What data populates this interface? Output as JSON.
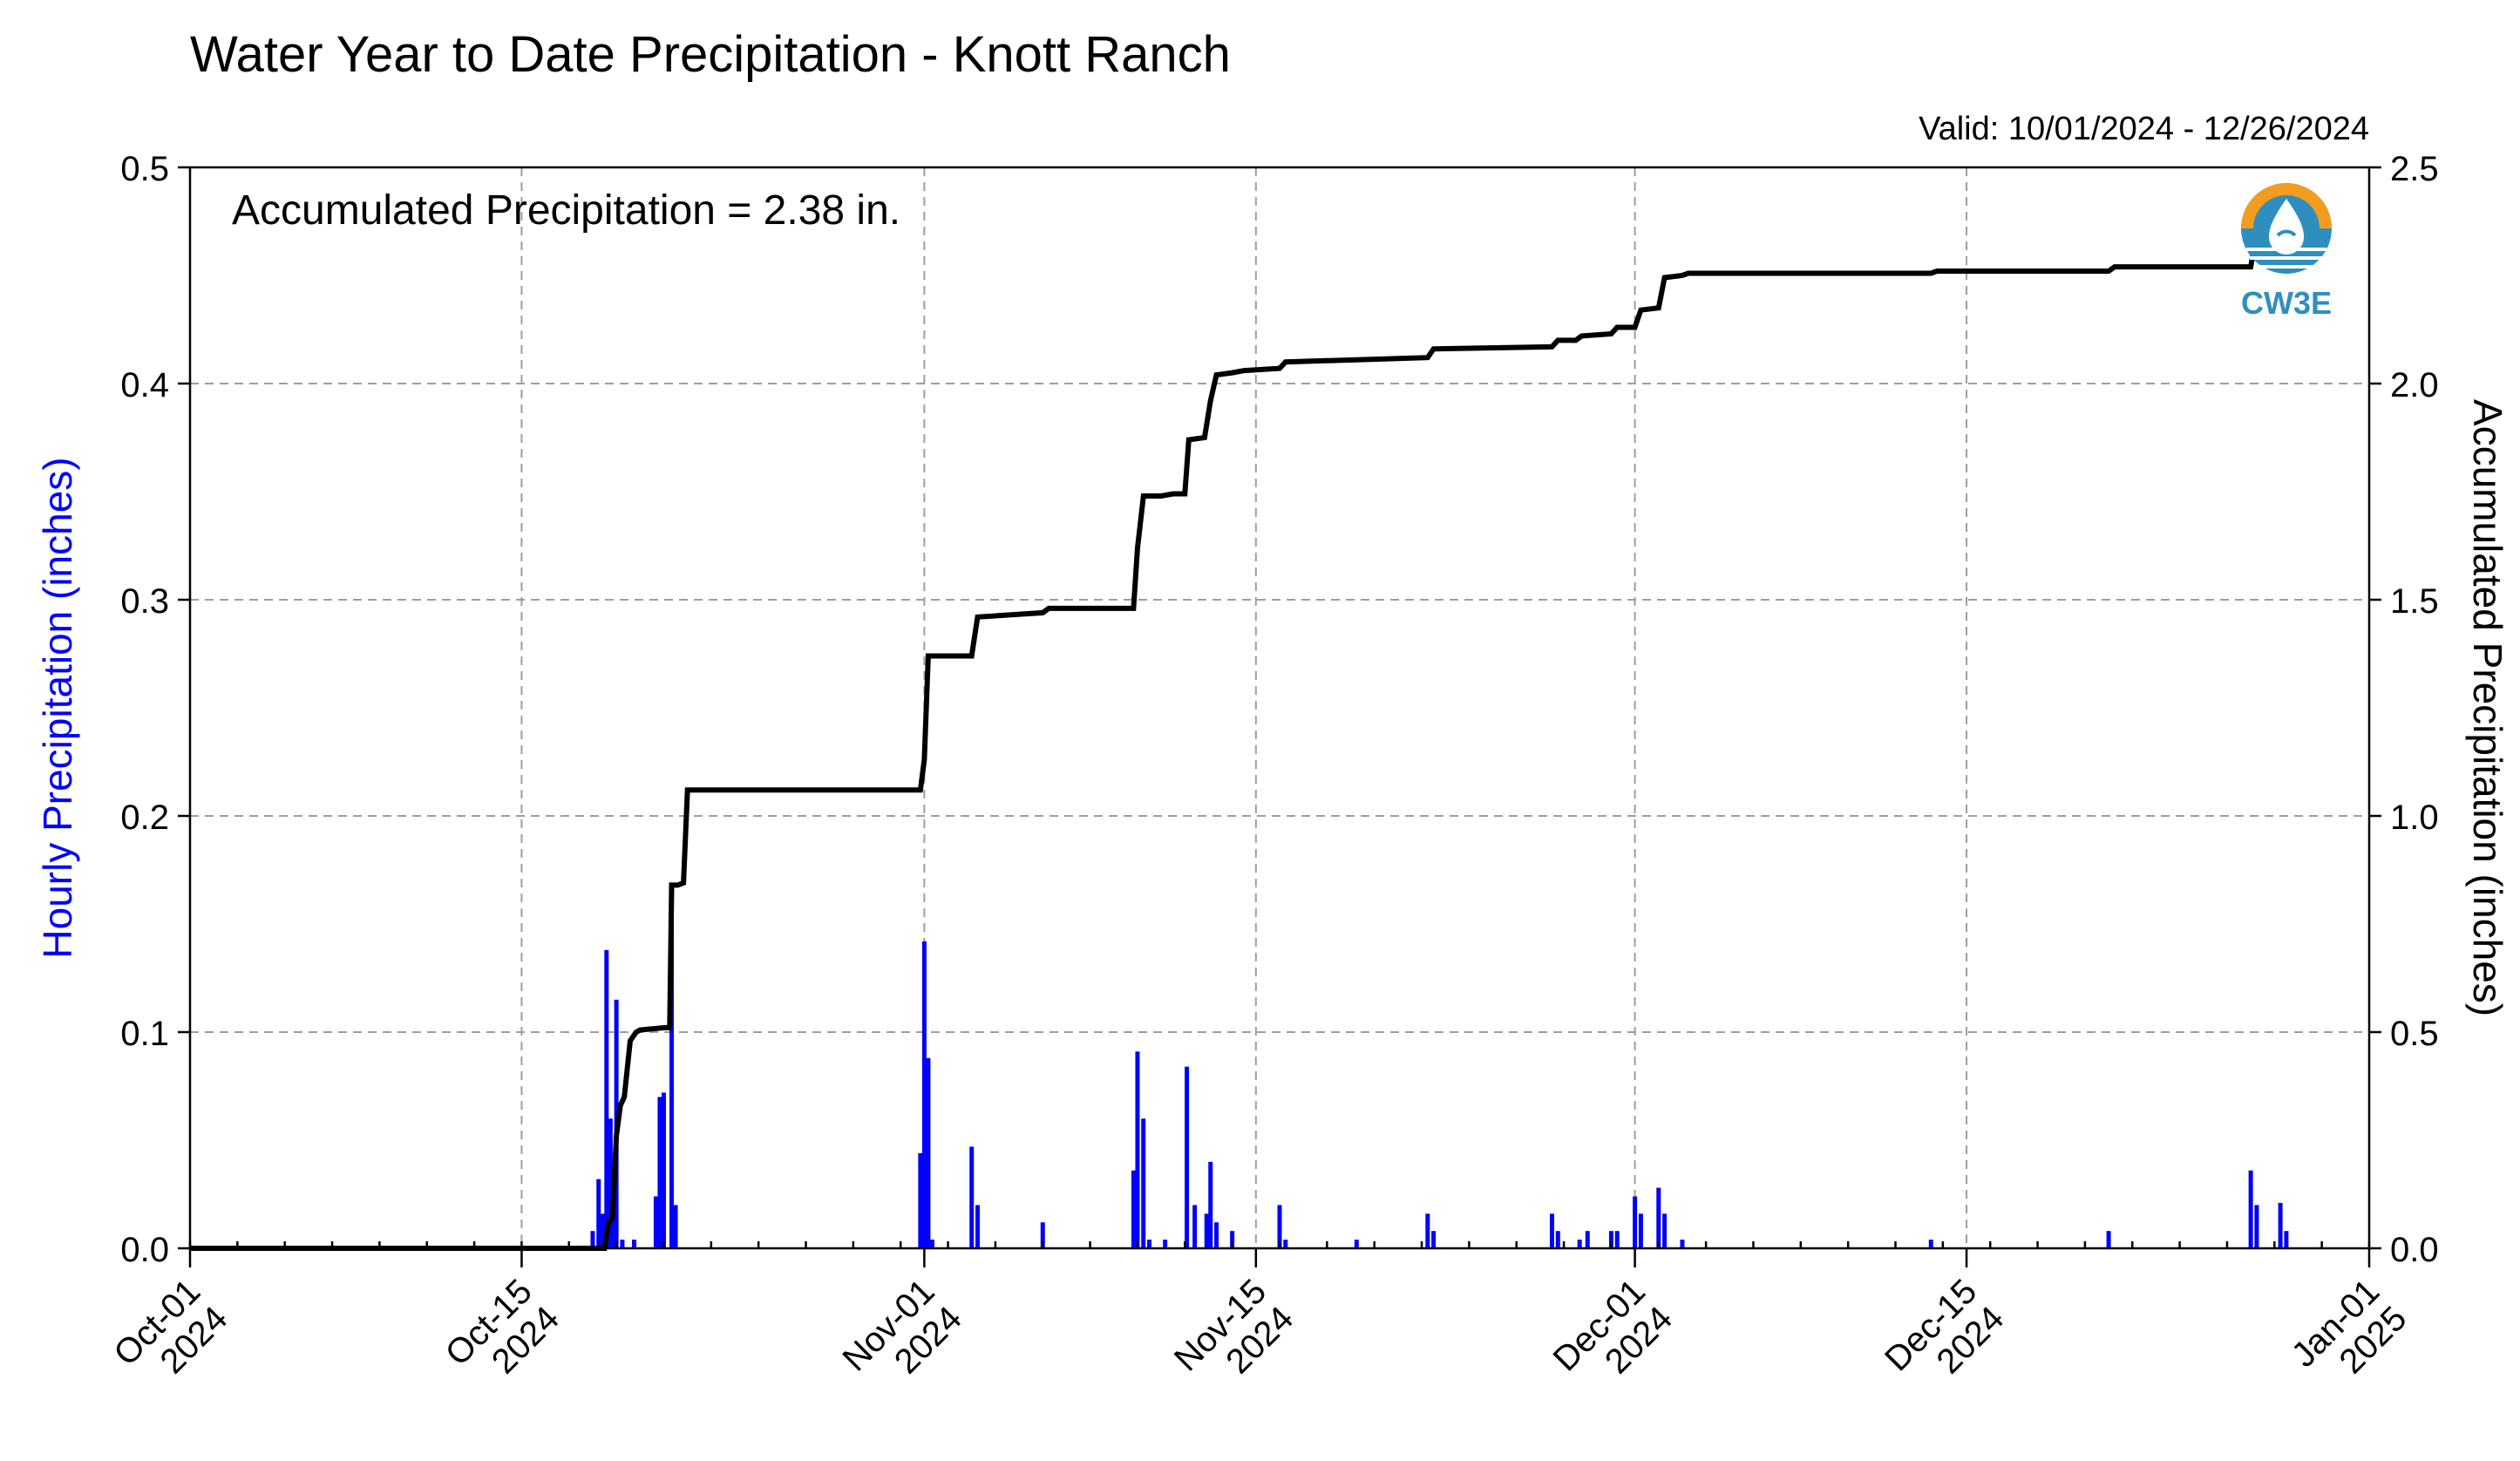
{
  "chart_data": {
    "type": "bar",
    "title": "Water Year to Date Precipitation - Knott Ranch",
    "valid_label": "Valid: 10/01/2024 - 12/26/2024",
    "annotation": "Accumulated Precipitation = 2.38 in.",
    "logo_text": "CW3E",
    "colors": {
      "hourly": "#0000ff",
      "accumulated": "#000000",
      "logo_orange": "#f39c1f",
      "logo_blue": "#2e8fbf"
    },
    "grid": true,
    "xlim": [
      "2024-10-01",
      "2025-01-01"
    ],
    "x_ticks": [
      {
        "date": "2024-10-01",
        "line1": "Oct-01",
        "line2": "2024"
      },
      {
        "date": "2024-10-15",
        "line1": "Oct-15",
        "line2": "2024"
      },
      {
        "date": "2024-11-01",
        "line1": "Nov-01",
        "line2": "2024"
      },
      {
        "date": "2024-11-15",
        "line1": "Nov-15",
        "line2": "2024"
      },
      {
        "date": "2024-12-01",
        "line1": "Dec-01",
        "line2": "2024"
      },
      {
        "date": "2024-12-15",
        "line1": "Dec-15",
        "line2": "2024"
      },
      {
        "date": "2025-01-01",
        "line1": "Jan-01",
        "line2": "2025"
      }
    ],
    "y_left": {
      "label": "Hourly Precipitation (inches)",
      "lim": [
        0,
        0.5
      ],
      "ticks": [
        "0.0",
        "0.1",
        "0.2",
        "0.3",
        "0.4",
        "0.5"
      ]
    },
    "y_right": {
      "label": "Accumulated Precipitation (inches)",
      "lim": [
        0,
        2.5
      ],
      "ticks": [
        "0.0",
        "0.5",
        "1.0",
        "1.5",
        "2.0",
        "2.5"
      ]
    },
    "hourly_series": [
      [
        "2024-10-18T00:00",
        0.008
      ],
      [
        "2024-10-18T06:00",
        0.032
      ],
      [
        "2024-10-18T10:00",
        0.016
      ],
      [
        "2024-10-18T14:00",
        0.138
      ],
      [
        "2024-10-18T18:00",
        0.06
      ],
      [
        "2024-10-18T22:00",
        0.028
      ],
      [
        "2024-10-19T00:00",
        0.115
      ],
      [
        "2024-10-19T06:00",
        0.004
      ],
      [
        "2024-10-19T18:00",
        0.004
      ],
      [
        "2024-10-20T16:00",
        0.024
      ],
      [
        "2024-10-20T20:00",
        0.07
      ],
      [
        "2024-10-21T00:00",
        0.072
      ],
      [
        "2024-10-21T08:00",
        0.168
      ],
      [
        "2024-10-21T12:00",
        0.02
      ],
      [
        "2024-10-31T20:00",
        0.044
      ],
      [
        "2024-11-01T00:00",
        0.142
      ],
      [
        "2024-11-01T04:00",
        0.088
      ],
      [
        "2024-11-01T08:00",
        0.004
      ],
      [
        "2024-11-03T00:00",
        0.047
      ],
      [
        "2024-11-03T06:00",
        0.02
      ],
      [
        "2024-11-06T00:00",
        0.012
      ],
      [
        "2024-11-09T20:00",
        0.036
      ],
      [
        "2024-11-10T00:00",
        0.091
      ],
      [
        "2024-11-10T06:00",
        0.06
      ],
      [
        "2024-11-10T12:00",
        0.004
      ],
      [
        "2024-11-11T04:00",
        0.004
      ],
      [
        "2024-11-12T02:00",
        0.084
      ],
      [
        "2024-11-12T10:00",
        0.02
      ],
      [
        "2024-11-12T22:00",
        0.016
      ],
      [
        "2024-11-13T02:00",
        0.04
      ],
      [
        "2024-11-13T08:00",
        0.012
      ],
      [
        "2024-11-14T00:00",
        0.008
      ],
      [
        "2024-11-16T00:00",
        0.02
      ],
      [
        "2024-11-16T06:00",
        0.004
      ],
      [
        "2024-11-19T06:00",
        0.004
      ],
      [
        "2024-11-22T06:00",
        0.016
      ],
      [
        "2024-11-22T12:00",
        0.008
      ],
      [
        "2024-11-27T12:00",
        0.016
      ],
      [
        "2024-11-27T18:00",
        0.008
      ],
      [
        "2024-11-28T16:00",
        0.004
      ],
      [
        "2024-11-29T00:00",
        0.008
      ],
      [
        "2024-11-30T00:00",
        0.008
      ],
      [
        "2024-11-30T06:00",
        0.008
      ],
      [
        "2024-12-01T00:00",
        0.024
      ],
      [
        "2024-12-01T06:00",
        0.016
      ],
      [
        "2024-12-02T00:00",
        0.028
      ],
      [
        "2024-12-02T06:00",
        0.016
      ],
      [
        "2024-12-03T00:00",
        0.004
      ],
      [
        "2024-12-13T12:00",
        0.004
      ],
      [
        "2024-12-21T00:00",
        0.008
      ],
      [
        "2024-12-27T00:00",
        0.036
      ],
      [
        "2024-12-27T06:00",
        0.02
      ],
      [
        "2024-12-28T06:00",
        0.021
      ],
      [
        "2024-12-28T12:00",
        0.008
      ]
    ],
    "accumulated_series": [
      [
        "2024-10-01T00:00",
        0.0
      ],
      [
        "2024-10-18T12:00",
        0.0
      ],
      [
        "2024-10-18T16:00",
        0.06
      ],
      [
        "2024-10-18T20:00",
        0.07
      ],
      [
        "2024-10-19T00:00",
        0.26
      ],
      [
        "2024-10-19T04:00",
        0.33
      ],
      [
        "2024-10-19T08:00",
        0.35
      ],
      [
        "2024-10-19T14:00",
        0.48
      ],
      [
        "2024-10-19T20:00",
        0.5
      ],
      [
        "2024-10-20T00:00",
        0.505
      ],
      [
        "2024-10-21T00:00",
        0.51
      ],
      [
        "2024-10-21T06:00",
        0.51
      ],
      [
        "2024-10-21T08:00",
        0.84
      ],
      [
        "2024-10-21T14:00",
        0.84
      ],
      [
        "2024-10-21T20:00",
        0.845
      ],
      [
        "2024-10-22T00:00",
        1.06
      ],
      [
        "2024-10-31T20:00",
        1.06
      ],
      [
        "2024-11-01T00:00",
        1.13
      ],
      [
        "2024-11-01T04:00",
        1.37
      ],
      [
        "2024-11-03T00:00",
        1.37
      ],
      [
        "2024-11-03T06:00",
        1.46
      ],
      [
        "2024-11-06T00:00",
        1.47
      ],
      [
        "2024-11-06T06:00",
        1.48
      ],
      [
        "2024-11-09T20:00",
        1.48
      ],
      [
        "2024-11-10T00:00",
        1.62
      ],
      [
        "2024-11-10T06:00",
        1.74
      ],
      [
        "2024-11-11T00:00",
        1.74
      ],
      [
        "2024-11-11T12:00",
        1.745
      ],
      [
        "2024-11-12T00:00",
        1.745
      ],
      [
        "2024-11-12T04:00",
        1.87
      ],
      [
        "2024-11-12T20:00",
        1.875
      ],
      [
        "2024-11-13T02:00",
        1.96
      ],
      [
        "2024-11-13T08:00",
        2.02
      ],
      [
        "2024-11-14T00:00",
        2.025
      ],
      [
        "2024-11-14T12:00",
        2.03
      ],
      [
        "2024-11-16T00:00",
        2.035
      ],
      [
        "2024-11-16T06:00",
        2.05
      ],
      [
        "2024-11-19T06:00",
        2.055
      ],
      [
        "2024-11-22T06:00",
        2.06
      ],
      [
        "2024-11-22T12:00",
        2.08
      ],
      [
        "2024-11-27T12:00",
        2.085
      ],
      [
        "2024-11-27T18:00",
        2.1
      ],
      [
        "2024-11-28T12:00",
        2.1
      ],
      [
        "2024-11-28T18:00",
        2.11
      ],
      [
        "2024-11-30T00:00",
        2.115
      ],
      [
        "2024-11-30T06:00",
        2.13
      ],
      [
        "2024-12-01T00:00",
        2.13
      ],
      [
        "2024-12-01T06:00",
        2.17
      ],
      [
        "2024-12-02T00:00",
        2.175
      ],
      [
        "2024-12-02T06:00",
        2.245
      ],
      [
        "2024-12-03T00:00",
        2.25
      ],
      [
        "2024-12-03T06:00",
        2.255
      ],
      [
        "2024-12-13T12:00",
        2.255
      ],
      [
        "2024-12-13T18:00",
        2.26
      ],
      [
        "2024-12-21T00:00",
        2.26
      ],
      [
        "2024-12-21T06:00",
        2.27
      ],
      [
        "2024-12-27T00:00",
        2.27
      ],
      [
        "2024-12-27T06:00",
        2.35
      ],
      [
        "2024-12-28T06:00",
        2.355
      ],
      [
        "2024-12-28T12:00",
        2.38
      ]
    ]
  }
}
